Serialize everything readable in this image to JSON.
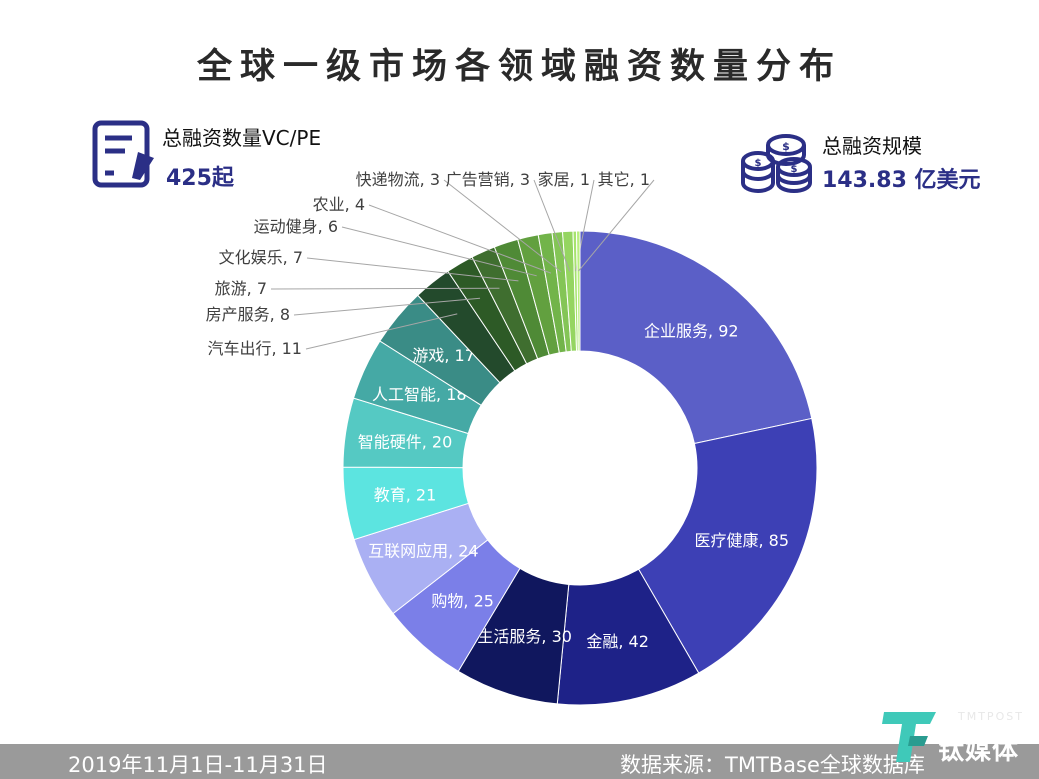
{
  "title": "全球一级市场各领域融资数量分布",
  "stats": {
    "count_label": "总融资数量VC/PE",
    "count_value": "425起",
    "scale_label": "总融资规模",
    "scale_value": "143.83 亿美元"
  },
  "footer": {
    "date_range": "2019年11月1日-11月31日",
    "source": "数据来源：TMTBase全球数据库"
  },
  "brand": {
    "name": "钛媒体",
    "name_en": "TMTPOST"
  },
  "icons": {
    "count": "document-pen-icon",
    "scale": "coin-stack-icon",
    "brand": "tmtpost-logo-icon"
  },
  "colors": {
    "title": "#2a2a2a",
    "stat_value": "#2b2f86",
    "footer_bg": "#9a9a9a"
  },
  "chart_data": {
    "type": "pie",
    "variant": "donut",
    "series": [
      {
        "label": "企业服务",
        "value": 92,
        "color": "#5b5fc7"
      },
      {
        "label": "医疗健康",
        "value": 85,
        "color": "#3d40b5"
      },
      {
        "label": "金融",
        "value": 42,
        "color": "#1e2288"
      },
      {
        "label": "生活服务",
        "value": 30,
        "color": "#10175e"
      },
      {
        "label": "购物",
        "value": 25,
        "color": "#7b7fe8"
      },
      {
        "label": "互联网应用",
        "value": 24,
        "color": "#aab0f3"
      },
      {
        "label": "教育",
        "value": 21,
        "color": "#5ce4e0"
      },
      {
        "label": "智能硬件",
        "value": 20,
        "color": "#55c9c3"
      },
      {
        "label": "人工智能",
        "value": 18,
        "color": "#45a9a5"
      },
      {
        "label": "游戏",
        "value": 17,
        "color": "#3a8c86"
      },
      {
        "label": "汽车出行",
        "value": 11,
        "color": "#234a2c"
      },
      {
        "label": "房产服务",
        "value": 8,
        "color": "#2d5a26"
      },
      {
        "label": "旅游",
        "value": 7,
        "color": "#3f6e2f"
      },
      {
        "label": "文化娱乐",
        "value": 7,
        "color": "#4f8a36"
      },
      {
        "label": "运动健身",
        "value": 6,
        "color": "#62a03f"
      },
      {
        "label": "农业",
        "value": 4,
        "color": "#72b44a"
      },
      {
        "label": "快递物流",
        "value": 3,
        "color": "#84c556"
      },
      {
        "label": "广告营销",
        "value": 3,
        "color": "#95d561"
      },
      {
        "label": "家居",
        "value": 1,
        "color": "#a6e36e"
      },
      {
        "label": "其它",
        "value": 1,
        "color": "#b8ef7e"
      }
    ]
  }
}
